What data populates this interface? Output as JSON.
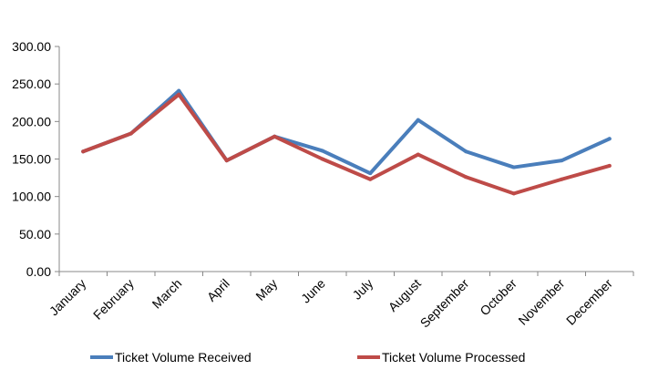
{
  "chart_data": {
    "type": "line",
    "categories": [
      "January",
      "February",
      "March",
      "April",
      "May",
      "June",
      "July",
      "August",
      "September",
      "October",
      "November",
      "December"
    ],
    "series": [
      {
        "name": "Ticket Volume Received",
        "color": "#4a7ebb",
        "values": [
          160,
          184,
          241,
          148,
          180,
          161,
          131,
          202,
          160,
          139,
          148,
          177
        ]
      },
      {
        "name": "Ticket Volume Processed",
        "color": "#be4b48",
        "values": [
          160,
          184,
          236,
          148,
          180,
          150,
          123,
          156,
          126,
          104,
          123,
          141
        ]
      }
    ],
    "ylim": [
      0,
      300
    ],
    "yticks": [
      "0.00",
      "50.00",
      "100.00",
      "150.00",
      "200.00",
      "250.00",
      "300.00"
    ],
    "title": "",
    "xlabel": "",
    "ylabel": "",
    "grid": false,
    "legend_position": "bottom"
  }
}
